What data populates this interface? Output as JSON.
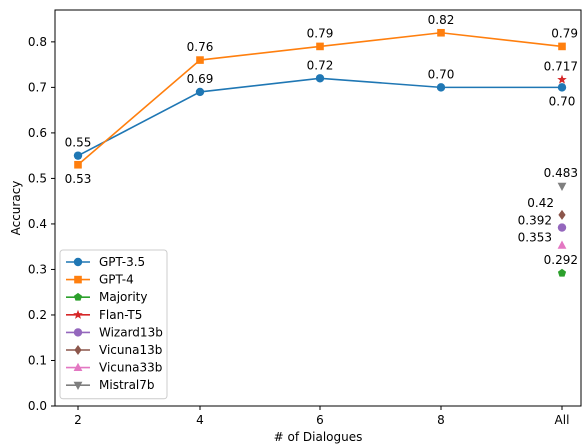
{
  "chart_data": {
    "type": "line",
    "title": "",
    "xlabel": "# of Dialogues",
    "ylabel": "Accuracy",
    "categories": [
      "2",
      "4",
      "6",
      "8",
      "All"
    ],
    "ylim": [
      0.0,
      0.87
    ],
    "yticks": [
      "0.0",
      "0.1",
      "0.2",
      "0.3",
      "0.4",
      "0.5",
      "0.6",
      "0.7",
      "0.8"
    ],
    "grid": false,
    "legend_position": "lower-left",
    "series": [
      {
        "name": "GPT-3.5",
        "marker": "circle",
        "color": "#1f77b4",
        "values": [
          0.55,
          0.69,
          0.72,
          0.7,
          0.7
        ],
        "labels": [
          "0.55",
          "0.69",
          "0.72",
          "0.70",
          "0.70"
        ],
        "label_pos": [
          "above",
          "above",
          "above",
          "above",
          "below"
        ]
      },
      {
        "name": "GPT-4",
        "marker": "square",
        "color": "#ff7f0e",
        "values": [
          0.53,
          0.76,
          0.79,
          0.82,
          0.79
        ],
        "labels": [
          "0.53",
          "0.76",
          "0.79",
          "0.82",
          "0.79"
        ],
        "label_pos": [
          "below",
          "above",
          "above",
          "above",
          "above"
        ]
      },
      {
        "name": "Majority",
        "marker": "pentagon",
        "color": "#2ca02c",
        "values": [
          null,
          null,
          null,
          null,
          0.292
        ],
        "labels": [
          null,
          null,
          null,
          null,
          "0.292"
        ],
        "label_pos": [
          "",
          "",
          "",
          "",
          "above"
        ]
      },
      {
        "name": "Flan-T5",
        "marker": "star",
        "color": "#d62728",
        "values": [
          null,
          null,
          null,
          null,
          0.717
        ],
        "labels": [
          null,
          null,
          null,
          null,
          "0.717"
        ],
        "label_pos": [
          "",
          "",
          "",
          "",
          "above"
        ]
      },
      {
        "name": "Wizard13b",
        "marker": "circle",
        "color": "#9467bd",
        "values": [
          null,
          null,
          null,
          null,
          0.392
        ],
        "labels": [
          null,
          null,
          null,
          null,
          "0.392"
        ],
        "label_pos": [
          "",
          "",
          "",
          "",
          "left"
        ]
      },
      {
        "name": "Vicuna13b",
        "marker": "diamond",
        "color": "#8c564b",
        "values": [
          null,
          null,
          null,
          null,
          0.42
        ],
        "labels": [
          null,
          null,
          null,
          null,
          "0.42"
        ],
        "label_pos": [
          "",
          "",
          "",
          "",
          "above-left"
        ]
      },
      {
        "name": "Vicuna33b",
        "marker": "triangle-up",
        "color": "#e377c2",
        "values": [
          null,
          null,
          null,
          null,
          0.353
        ],
        "labels": [
          null,
          null,
          null,
          null,
          "0.353"
        ],
        "label_pos": [
          "",
          "",
          "",
          "",
          "left-low"
        ]
      },
      {
        "name": "Mistral7b",
        "marker": "triangle-down",
        "color": "#7f7f7f",
        "values": [
          null,
          null,
          null,
          null,
          0.483
        ],
        "labels": [
          null,
          null,
          null,
          null,
          "0.483"
        ],
        "label_pos": [
          "",
          "",
          "",
          "",
          "above"
        ]
      }
    ]
  }
}
